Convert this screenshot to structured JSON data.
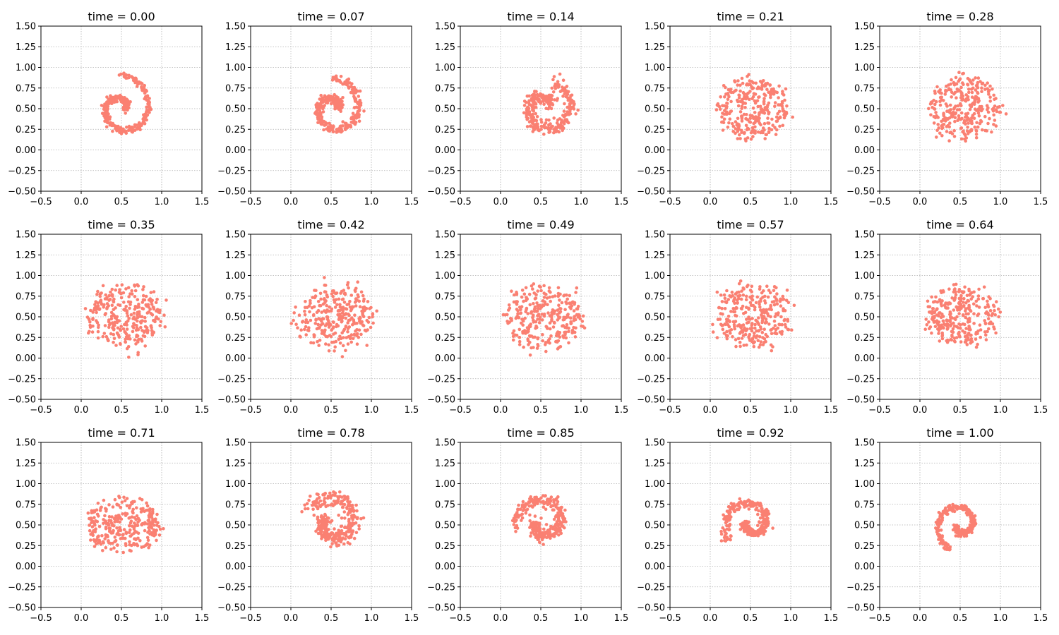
{
  "figure": {
    "grid": {
      "rows": 3,
      "cols": 5
    },
    "point_color": "#fa8072",
    "grid_line_color": "#b0b0b0",
    "grid_on": true,
    "grid_style": "dotted"
  },
  "chart_data": [
    {
      "type": "scatter",
      "title": "time = 0.00",
      "xlim": [
        -0.5,
        1.5
      ],
      "ylim": [
        -0.5,
        1.5
      ],
      "xticks": [
        "−0.5",
        "0.0",
        "0.5",
        "1.0",
        "1.5"
      ],
      "yticks": [
        "−0.50",
        "−0.25",
        "0.00",
        "0.25",
        "0.50",
        "0.75",
        "1.00",
        "1.25",
        "1.50"
      ],
      "shape": {
        "kind": "spiral",
        "cx": 0.5,
        "cy": 0.5,
        "r0": 0.05,
        "r1": 0.4,
        "theta0": 0,
        "turns": 1.25,
        "scatter": 0.02,
        "n": 300
      }
    },
    {
      "type": "scatter",
      "title": "time = 0.07",
      "xlim": [
        -0.5,
        1.5
      ],
      "ylim": [
        -0.5,
        1.5
      ],
      "xticks": [
        "−0.5",
        "0.0",
        "0.5",
        "1.0",
        "1.5"
      ],
      "yticks": [
        "−0.50",
        "−0.25",
        "0.00",
        "0.25",
        "0.50",
        "0.75",
        "1.00",
        "1.25",
        "1.50"
      ],
      "shape": {
        "kind": "spiral",
        "cx": 0.53,
        "cy": 0.5,
        "r0": 0.07,
        "r1": 0.37,
        "theta0": 0.3,
        "turns": 1.2,
        "scatter": 0.03,
        "n": 300
      }
    },
    {
      "type": "scatter",
      "title": "time = 0.14",
      "xlim": [
        -0.5,
        1.5
      ],
      "ylim": [
        -0.5,
        1.5
      ],
      "xticks": [
        "−0.5",
        "0.0",
        "0.5",
        "1.0",
        "1.5"
      ],
      "yticks": [
        "−0.50",
        "−0.25",
        "0.00",
        "0.25",
        "0.50",
        "0.75",
        "1.00",
        "1.25",
        "1.50"
      ],
      "shape": {
        "kind": "spiral",
        "cx": 0.55,
        "cy": 0.5,
        "r0": 0.1,
        "r1": 0.35,
        "theta0": 0.6,
        "turns": 1.1,
        "scatter": 0.04,
        "n": 300
      }
    },
    {
      "type": "scatter",
      "title": "time = 0.21",
      "xlim": [
        -0.5,
        1.5
      ],
      "ylim": [
        -0.5,
        1.5
      ],
      "xticks": [
        "−0.5",
        "0.0",
        "0.5",
        "1.0",
        "1.5"
      ],
      "yticks": [
        "−0.50",
        "−0.25",
        "0.00",
        "0.25",
        "0.50",
        "0.75",
        "1.00",
        "1.25",
        "1.50"
      ],
      "shape": {
        "kind": "blob",
        "cx": 0.52,
        "cy": 0.5,
        "rx": 0.37,
        "ry": 0.3,
        "scatter": 0.05,
        "n": 300
      }
    },
    {
      "type": "scatter",
      "title": "time = 0.28",
      "xlim": [
        -0.5,
        1.5
      ],
      "ylim": [
        -0.5,
        1.5
      ],
      "xticks": [
        "−0.5",
        "0.0",
        "0.5",
        "1.0",
        "1.5"
      ],
      "yticks": [
        "−0.50",
        "−0.25",
        "0.00",
        "0.25",
        "0.50",
        "0.75",
        "1.00",
        "1.25",
        "1.50"
      ],
      "shape": {
        "kind": "blob",
        "cx": 0.55,
        "cy": 0.5,
        "rx": 0.38,
        "ry": 0.3,
        "scatter": 0.06,
        "n": 300
      }
    },
    {
      "type": "scatter",
      "title": "time = 0.35",
      "xlim": [
        -0.5,
        1.5
      ],
      "ylim": [
        -0.5,
        1.5
      ],
      "xticks": [
        "−0.5",
        "0.0",
        "0.5",
        "1.0",
        "1.5"
      ],
      "yticks": [
        "−0.50",
        "−0.25",
        "0.00",
        "0.25",
        "0.50",
        "0.75",
        "1.00",
        "1.25",
        "1.50"
      ],
      "shape": {
        "kind": "blob",
        "cx": 0.55,
        "cy": 0.5,
        "rx": 0.38,
        "ry": 0.3,
        "scatter": 0.07,
        "n": 300
      }
    },
    {
      "type": "scatter",
      "title": "time = 0.42",
      "xlim": [
        -0.5,
        1.5
      ],
      "ylim": [
        -0.5,
        1.5
      ],
      "xticks": [
        "−0.5",
        "0.0",
        "0.5",
        "1.0",
        "1.5"
      ],
      "yticks": [
        "−0.50",
        "−0.25",
        "0.00",
        "0.25",
        "0.50",
        "0.75",
        "1.00",
        "1.25",
        "1.50"
      ],
      "shape": {
        "kind": "blob",
        "cx": 0.55,
        "cy": 0.5,
        "rx": 0.38,
        "ry": 0.3,
        "scatter": 0.07,
        "n": 300
      }
    },
    {
      "type": "scatter",
      "title": "time = 0.49",
      "xlim": [
        -0.5,
        1.5
      ],
      "ylim": [
        -0.5,
        1.5
      ],
      "xticks": [
        "−0.5",
        "0.0",
        "0.5",
        "1.0",
        "1.5"
      ],
      "yticks": [
        "−0.50",
        "−0.25",
        "0.00",
        "0.25",
        "0.50",
        "0.75",
        "1.00",
        "1.25",
        "1.50"
      ],
      "shape": {
        "kind": "blob",
        "cx": 0.55,
        "cy": 0.5,
        "rx": 0.38,
        "ry": 0.3,
        "scatter": 0.07,
        "n": 300
      }
    },
    {
      "type": "scatter",
      "title": "time = 0.57",
      "xlim": [
        -0.5,
        1.5
      ],
      "ylim": [
        -0.5,
        1.5
      ],
      "xticks": [
        "−0.5",
        "0.0",
        "0.5",
        "1.0",
        "1.5"
      ],
      "yticks": [
        "−0.50",
        "−0.25",
        "0.00",
        "0.25",
        "0.50",
        "0.75",
        "1.00",
        "1.25",
        "1.50"
      ],
      "shape": {
        "kind": "blob",
        "cx": 0.53,
        "cy": 0.5,
        "rx": 0.38,
        "ry": 0.3,
        "scatter": 0.07,
        "n": 300
      }
    },
    {
      "type": "scatter",
      "title": "time = 0.64",
      "xlim": [
        -0.5,
        1.5
      ],
      "ylim": [
        -0.5,
        1.5
      ],
      "xticks": [
        "−0.5",
        "0.0",
        "0.5",
        "1.0",
        "1.5"
      ],
      "yticks": [
        "−0.50",
        "−0.25",
        "0.00",
        "0.25",
        "0.50",
        "0.75",
        "1.00",
        "1.25",
        "1.50"
      ],
      "shape": {
        "kind": "blob",
        "cx": 0.52,
        "cy": 0.5,
        "rx": 0.38,
        "ry": 0.28,
        "scatter": 0.06,
        "n": 300
      }
    },
    {
      "type": "scatter",
      "title": "time = 0.71",
      "xlim": [
        -0.5,
        1.5
      ],
      "ylim": [
        -0.5,
        1.5
      ],
      "xticks": [
        "−0.5",
        "0.0",
        "0.5",
        "1.0",
        "1.5"
      ],
      "yticks": [
        "−0.50",
        "−0.25",
        "0.00",
        "0.25",
        "0.50",
        "0.75",
        "1.00",
        "1.25",
        "1.50"
      ],
      "shape": {
        "kind": "blob",
        "cx": 0.52,
        "cy": 0.5,
        "rx": 0.4,
        "ry": 0.26,
        "scatter": 0.05,
        "n": 300
      }
    },
    {
      "type": "scatter",
      "title": "time = 0.78",
      "xlim": [
        -0.5,
        1.5
      ],
      "ylim": [
        -0.5,
        1.5
      ],
      "xticks": [
        "−0.5",
        "0.0",
        "0.5",
        "1.0",
        "1.5"
      ],
      "yticks": [
        "−0.50",
        "−0.25",
        "0.00",
        "0.25",
        "0.50",
        "0.75",
        "1.00",
        "1.25",
        "1.50"
      ],
      "shape": {
        "kind": "spiral",
        "cx": 0.52,
        "cy": 0.52,
        "r0": 0.1,
        "r1": 0.35,
        "theta0": 2.6,
        "turns": 1.0,
        "scatter": 0.05,
        "n": 300
      }
    },
    {
      "type": "scatter",
      "title": "time = 0.85",
      "xlim": [
        -0.5,
        1.5
      ],
      "ylim": [
        -0.5,
        1.5
      ],
      "xticks": [
        "−0.5",
        "0.0",
        "0.5",
        "1.0",
        "1.5"
      ],
      "yticks": [
        "−0.50",
        "−0.25",
        "0.00",
        "0.25",
        "0.50",
        "0.75",
        "1.00",
        "1.25",
        "1.50"
      ],
      "shape": {
        "kind": "spiral",
        "cx": 0.52,
        "cy": 0.52,
        "r0": 0.08,
        "r1": 0.34,
        "theta0": 2.9,
        "turns": 1.05,
        "scatter": 0.04,
        "n": 300
      }
    },
    {
      "type": "scatter",
      "title": "time = 0.92",
      "xlim": [
        -0.5,
        1.5
      ],
      "ylim": [
        -0.5,
        1.5
      ],
      "xticks": [
        "−0.5",
        "0.0",
        "0.5",
        "1.0",
        "1.5"
      ],
      "yticks": [
        "−0.50",
        "−0.25",
        "0.00",
        "0.25",
        "0.50",
        "0.75",
        "1.00",
        "1.25",
        "1.50"
      ],
      "shape": {
        "kind": "spiral",
        "cx": 0.5,
        "cy": 0.52,
        "r0": 0.06,
        "r1": 0.33,
        "theta0": 3.2,
        "turns": 1.1,
        "scatter": 0.03,
        "n": 300
      }
    },
    {
      "type": "scatter",
      "title": "time = 1.00",
      "xlim": [
        -0.5,
        1.5
      ],
      "ylim": [
        -0.5,
        1.5
      ],
      "xticks": [
        "−0.5",
        "0.0",
        "0.5",
        "1.0",
        "1.5"
      ],
      "yticks": [
        "−0.50",
        "−0.25",
        "0.00",
        "0.25",
        "0.50",
        "0.75",
        "1.00",
        "1.25",
        "1.50"
      ],
      "shape": {
        "kind": "spiral",
        "cx": 0.5,
        "cy": 0.5,
        "r0": 0.05,
        "r1": 0.32,
        "theta0": 3.4,
        "turns": 1.15,
        "scatter": 0.02,
        "n": 300
      }
    }
  ]
}
